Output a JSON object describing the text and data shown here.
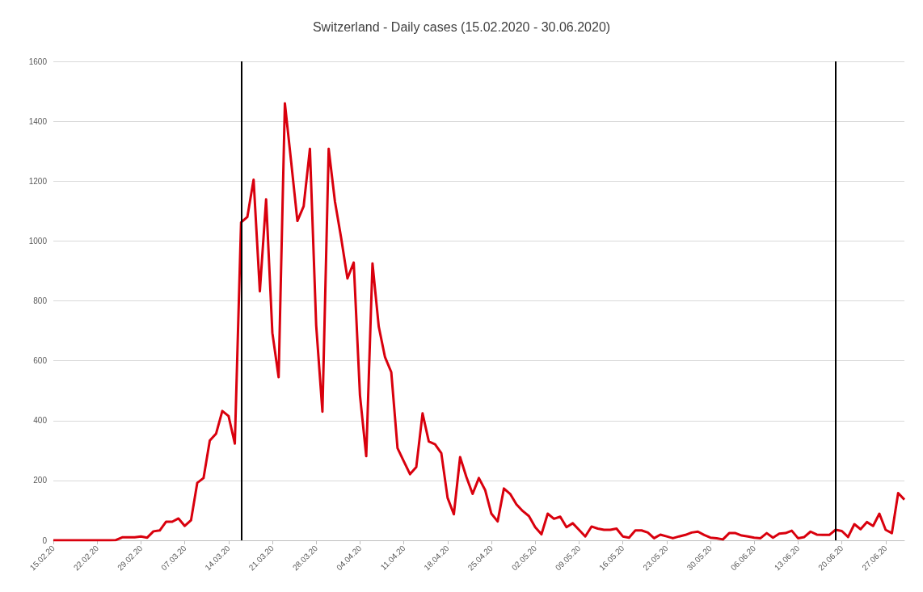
{
  "chart_data": {
    "type": "line",
    "title": "Switzerland - Daily cases (15.02.2020 - 30.06.2020)",
    "x": [
      "2020-02-15",
      "2020-02-16",
      "2020-02-17",
      "2020-02-18",
      "2020-02-19",
      "2020-02-20",
      "2020-02-21",
      "2020-02-22",
      "2020-02-23",
      "2020-02-24",
      "2020-02-25",
      "2020-02-26",
      "2020-02-27",
      "2020-02-28",
      "2020-02-29",
      "2020-03-01",
      "2020-03-02",
      "2020-03-03",
      "2020-03-04",
      "2020-03-05",
      "2020-03-06",
      "2020-03-07",
      "2020-03-08",
      "2020-03-09",
      "2020-03-10",
      "2020-03-11",
      "2020-03-12",
      "2020-03-13",
      "2020-03-14",
      "2020-03-15",
      "2020-03-16",
      "2020-03-17",
      "2020-03-18",
      "2020-03-19",
      "2020-03-20",
      "2020-03-21",
      "2020-03-22",
      "2020-03-23",
      "2020-03-24",
      "2020-03-25",
      "2020-03-26",
      "2020-03-27",
      "2020-03-28",
      "2020-03-29",
      "2020-03-30",
      "2020-03-31",
      "2020-04-01",
      "2020-04-02",
      "2020-04-03",
      "2020-04-04",
      "2020-04-05",
      "2020-04-06",
      "2020-04-07",
      "2020-04-08",
      "2020-04-09",
      "2020-04-10",
      "2020-04-11",
      "2020-04-12",
      "2020-04-13",
      "2020-04-14",
      "2020-04-15",
      "2020-04-16",
      "2020-04-17",
      "2020-04-18",
      "2020-04-19",
      "2020-04-20",
      "2020-04-21",
      "2020-04-22",
      "2020-04-23",
      "2020-04-24",
      "2020-04-25",
      "2020-04-26",
      "2020-04-27",
      "2020-04-28",
      "2020-04-29",
      "2020-04-30",
      "2020-05-01",
      "2020-05-02",
      "2020-05-03",
      "2020-05-04",
      "2020-05-05",
      "2020-05-06",
      "2020-05-07",
      "2020-05-08",
      "2020-05-09",
      "2020-05-10",
      "2020-05-11",
      "2020-05-12",
      "2020-05-13",
      "2020-05-14",
      "2020-05-15",
      "2020-05-16",
      "2020-05-17",
      "2020-05-18",
      "2020-05-19",
      "2020-05-20",
      "2020-05-21",
      "2020-05-22",
      "2020-05-23",
      "2020-05-24",
      "2020-05-25",
      "2020-05-26",
      "2020-05-27",
      "2020-05-28",
      "2020-05-29",
      "2020-05-30",
      "2020-05-31",
      "2020-06-01",
      "2020-06-02",
      "2020-06-03",
      "2020-06-04",
      "2020-06-05",
      "2020-06-06",
      "2020-06-07",
      "2020-06-08",
      "2020-06-09",
      "2020-06-10",
      "2020-06-11",
      "2020-06-12",
      "2020-06-13",
      "2020-06-14",
      "2020-06-15",
      "2020-06-16",
      "2020-06-17",
      "2020-06-18",
      "2020-06-19",
      "2020-06-20",
      "2020-06-21",
      "2020-06-22",
      "2020-06-23",
      "2020-06-24",
      "2020-06-25",
      "2020-06-26",
      "2020-06-27",
      "2020-06-28",
      "2020-06-29",
      "2020-06-30"
    ],
    "series": [
      {
        "color": "#d9000d",
        "values": [
          0,
          0,
          0,
          0,
          0,
          0,
          0,
          0,
          0,
          0,
          1,
          10,
          10,
          10,
          13,
          9,
          30,
          33,
          62,
          62,
          73,
          48,
          67,
          192,
          208,
          333,
          356,
          432,
          415,
          323,
          1062,
          1080,
          1205,
          832,
          1139,
          693,
          545,
          1460,
          1265,
          1067,
          1116,
          1308,
          719,
          430,
          1308,
          1132,
          1009,
          875,
          928,
          484,
          281,
          925,
          714,
          612,
          562,
          308,
          264,
          221,
          245,
          424,
          330,
          321,
          291,
          142,
          87,
          278,
          212,
          155,
          208,
          168,
          89,
          63,
          173,
          155,
          120,
          98,
          81,
          44,
          20,
          89,
          72,
          79,
          44,
          57,
          35,
          13,
          46,
          39,
          35,
          35,
          39,
          13,
          9,
          33,
          33,
          26,
          7,
          19,
          13,
          7,
          13,
          18,
          26,
          29,
          18,
          9,
          7,
          3,
          24,
          24,
          16,
          13,
          9,
          7,
          24,
          9,
          22,
          24,
          32,
          7,
          11,
          29,
          19,
          18,
          18,
          35,
          31,
          11,
          54,
          37,
          61,
          48,
          89,
          35,
          24,
          158,
          136
        ]
      }
    ],
    "xlim": [
      "2020-02-15",
      "2020-06-30"
    ],
    "xticks": [
      {
        "value": "2020-02-15",
        "label": "15.02.20"
      },
      {
        "value": "2020-02-22",
        "label": "22.02.20"
      },
      {
        "value": "2020-02-29",
        "label": "29.02.20"
      },
      {
        "value": "2020-03-07",
        "label": "07.03.20"
      },
      {
        "value": "2020-03-14",
        "label": "14.03.20"
      },
      {
        "value": "2020-03-21",
        "label": "21.03.20"
      },
      {
        "value": "2020-03-28",
        "label": "28.03.20"
      },
      {
        "value": "2020-04-04",
        "label": "04.04.20"
      },
      {
        "value": "2020-04-11",
        "label": "11.04.20"
      },
      {
        "value": "2020-04-18",
        "label": "18.04.20"
      },
      {
        "value": "2020-04-25",
        "label": "25.04.20"
      },
      {
        "value": "2020-05-02",
        "label": "02.05.20"
      },
      {
        "value": "2020-05-09",
        "label": "09.05.20"
      },
      {
        "value": "2020-05-16",
        "label": "16.05.20"
      },
      {
        "value": "2020-05-23",
        "label": "23.05.20"
      },
      {
        "value": "2020-05-30",
        "label": "30.05.20"
      },
      {
        "value": "2020-06-06",
        "label": "06.06.20"
      },
      {
        "value": "2020-06-13",
        "label": "13.06.20"
      },
      {
        "value": "2020-06-20",
        "label": "20.06.20"
      },
      {
        "value": "2020-06-27",
        "label": "27.06.20"
      }
    ],
    "ylim": [
      0,
      1600
    ],
    "yticks": [
      0,
      200,
      400,
      600,
      800,
      1000,
      1200,
      1400,
      1600
    ],
    "grid": "y",
    "marker": "none",
    "line_style": "solid",
    "ref_lines": [
      {
        "axis": "x",
        "value": "2020-03-16",
        "color": "#000000"
      },
      {
        "axis": "x",
        "value": "2020-06-19",
        "color": "#000000"
      }
    ]
  }
}
